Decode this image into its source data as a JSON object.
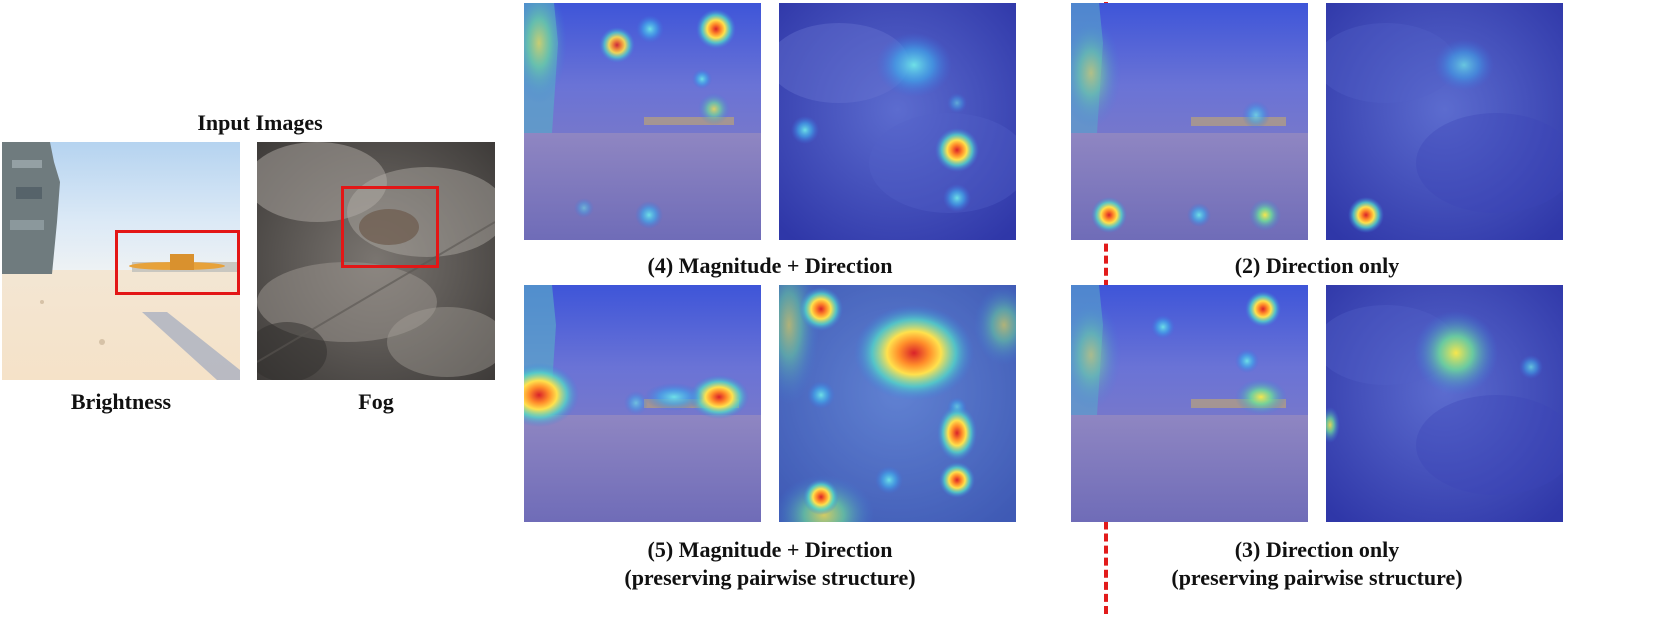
{
  "input_section": {
    "title": "Input Images",
    "images": [
      {
        "caption": "Brightness"
      },
      {
        "caption": "Fog"
      }
    ]
  },
  "panels": [
    {
      "caption": "(4) Magnitude + Direction"
    },
    {
      "caption": "(2) Direction only"
    },
    {
      "caption_line1": "(5) Magnitude + Direction",
      "caption_line2": "(preserving pairwise structure)"
    },
    {
      "caption_line1": "(3) Direction only",
      "caption_line2": "(preserving pairwise structure)"
    }
  ],
  "colors": {
    "bbox": "#e31616",
    "divider": "#e21b1b",
    "heat_hot": "#d7301f",
    "heat_mid": "#ffe14d",
    "heat_cool": "#4bd1d6",
    "heat_base": "#3c47c9"
  }
}
